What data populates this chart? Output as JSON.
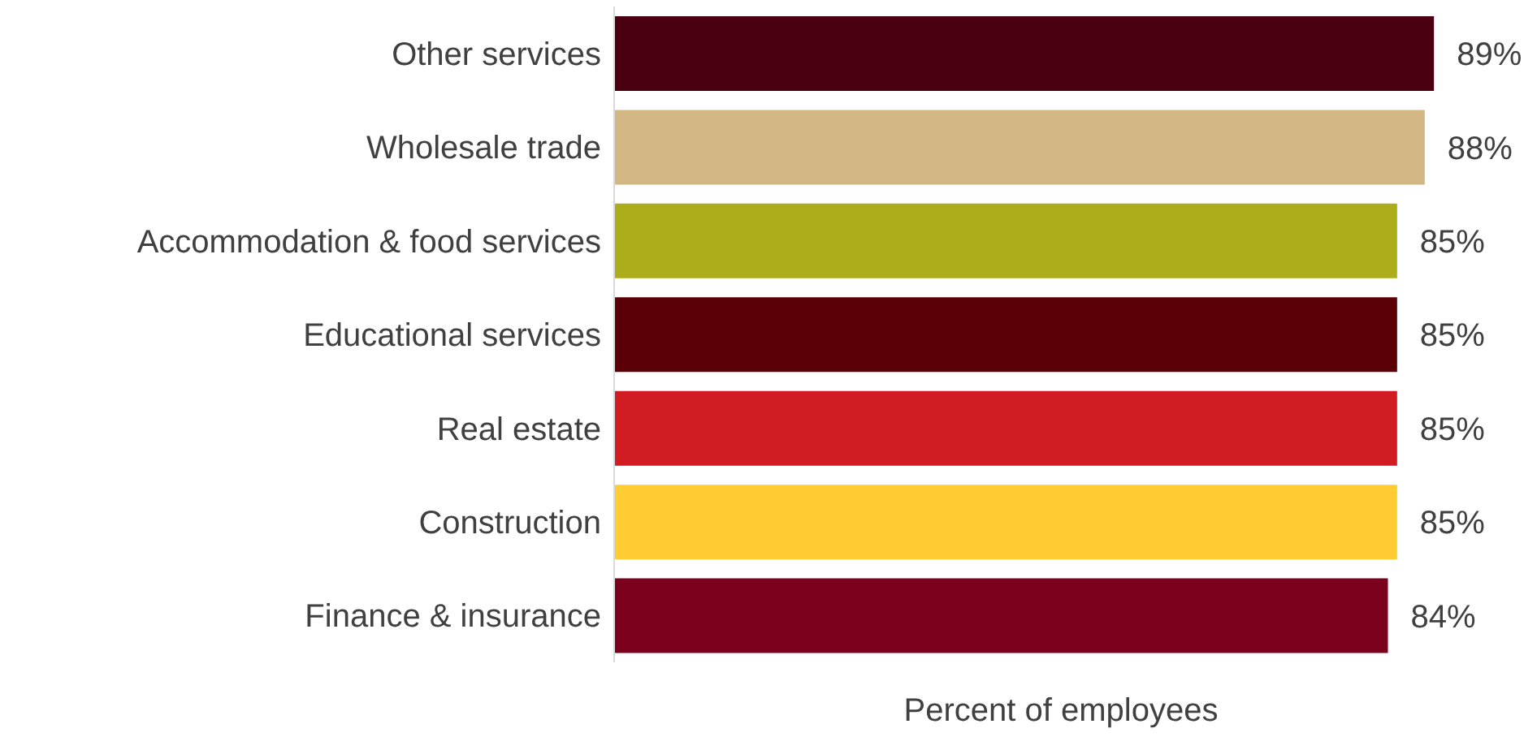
{
  "chart_data": {
    "type": "bar",
    "orientation": "horizontal",
    "xlabel": "Percent of employees",
    "categories": [
      "Other services",
      "Wholesale trade",
      "Accommodation & food services",
      "Educational services",
      "Real estate",
      "Construction",
      "Finance & insurance"
    ],
    "values": [
      89,
      88,
      85,
      85,
      85,
      85,
      84
    ],
    "value_labels": [
      "89%",
      "88%",
      "85%",
      "85%",
      "85%",
      "85%",
      "84%"
    ],
    "colors": [
      "#4a0011",
      "#d2b784",
      "#adad1b",
      "#5c0008",
      "#d01c22",
      "#ffcc33",
      "#7a001c"
    ]
  }
}
